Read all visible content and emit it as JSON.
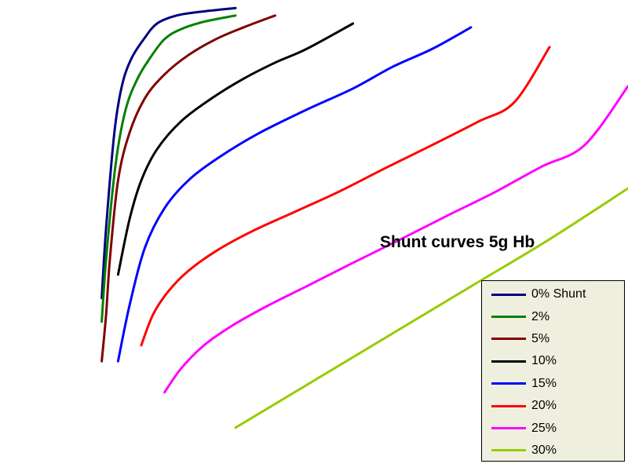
{
  "chart_data": {
    "type": "line",
    "title": "Shunt curves 5g Hb",
    "xlabel": "",
    "ylabel": "",
    "xlim": [
      0,
      100
    ],
    "ylim": [
      0,
      100
    ],
    "grid": false,
    "legend_position": "bottom-right",
    "series": [
      {
        "name": "0% Shunt",
        "color": "#000080",
        "x": [
          16.2,
          16.9,
          18.2,
          19.4,
          20.9,
          22.9,
          25.0,
          28.1,
          31.9,
          37.5
        ],
        "y": [
          36.7,
          51.7,
          71.7,
          81.7,
          87.5,
          91.7,
          95.0,
          96.7,
          97.5,
          98.3
        ]
      },
      {
        "name": "2%",
        "color": "#008000",
        "x": [
          16.2,
          16.9,
          18.4,
          20.0,
          21.9,
          23.8,
          26.2,
          28.8,
          32.5,
          37.5
        ],
        "y": [
          31.7,
          45.0,
          65.0,
          76.7,
          83.3,
          87.5,
          91.7,
          93.8,
          95.4,
          96.7
        ]
      },
      {
        "name": "5%",
        "color": "#800000",
        "x": [
          16.2,
          16.9,
          17.5,
          18.8,
          20.6,
          23.1,
          26.2,
          30.0,
          34.4,
          38.8,
          43.8
        ],
        "y": [
          23.3,
          33.3,
          45.0,
          61.7,
          71.7,
          79.2,
          84.2,
          88.3,
          91.7,
          94.2,
          96.7
        ]
      },
      {
        "name": "10%",
        "color": "#000000",
        "x": [
          18.8,
          20.6,
          22.5,
          25.0,
          28.8,
          33.8,
          38.8,
          43.8,
          48.8,
          56.2
        ],
        "y": [
          41.7,
          53.3,
          61.7,
          68.3,
          74.2,
          79.2,
          83.3,
          86.7,
          89.6,
          95.0
        ]
      },
      {
        "name": "15%",
        "color": "#0000ff",
        "x": [
          18.8,
          20.6,
          23.1,
          26.2,
          30.0,
          35.0,
          41.2,
          48.8,
          56.2,
          62.5,
          68.8,
          75.0
        ],
        "y": [
          23.3,
          35.0,
          47.5,
          55.8,
          61.7,
          66.7,
          71.7,
          76.7,
          81.2,
          85.8,
          89.6,
          94.2
        ]
      },
      {
        "name": "20%",
        "color": "#ff0000",
        "x": [
          22.5,
          24.4,
          26.9,
          30.0,
          34.4,
          40.0,
          46.9,
          53.8,
          61.2,
          68.8,
          76.2,
          81.9,
          87.5
        ],
        "y": [
          26.7,
          33.3,
          38.3,
          42.5,
          46.7,
          50.8,
          55.0,
          59.2,
          64.2,
          69.2,
          74.2,
          78.3,
          90.0
        ]
      },
      {
        "name": "25%",
        "color": "#ff00ff",
        "x": [
          26.2,
          28.8,
          32.5,
          36.9,
          42.5,
          48.8,
          56.2,
          63.8,
          71.2,
          78.8,
          86.2,
          93.1,
          100.0
        ],
        "y": [
          16.7,
          21.7,
          26.7,
          30.8,
          35.0,
          39.2,
          44.2,
          49.2,
          54.2,
          59.2,
          64.6,
          69.2,
          81.7
        ]
      },
      {
        "name": "30%",
        "color": "#99cc00",
        "x": [
          37.5,
          50.0,
          62.5,
          75.0,
          87.5,
          100.0
        ],
        "y": [
          9.2,
          19.2,
          29.2,
          39.2,
          49.2,
          60.0
        ]
      }
    ]
  }
}
